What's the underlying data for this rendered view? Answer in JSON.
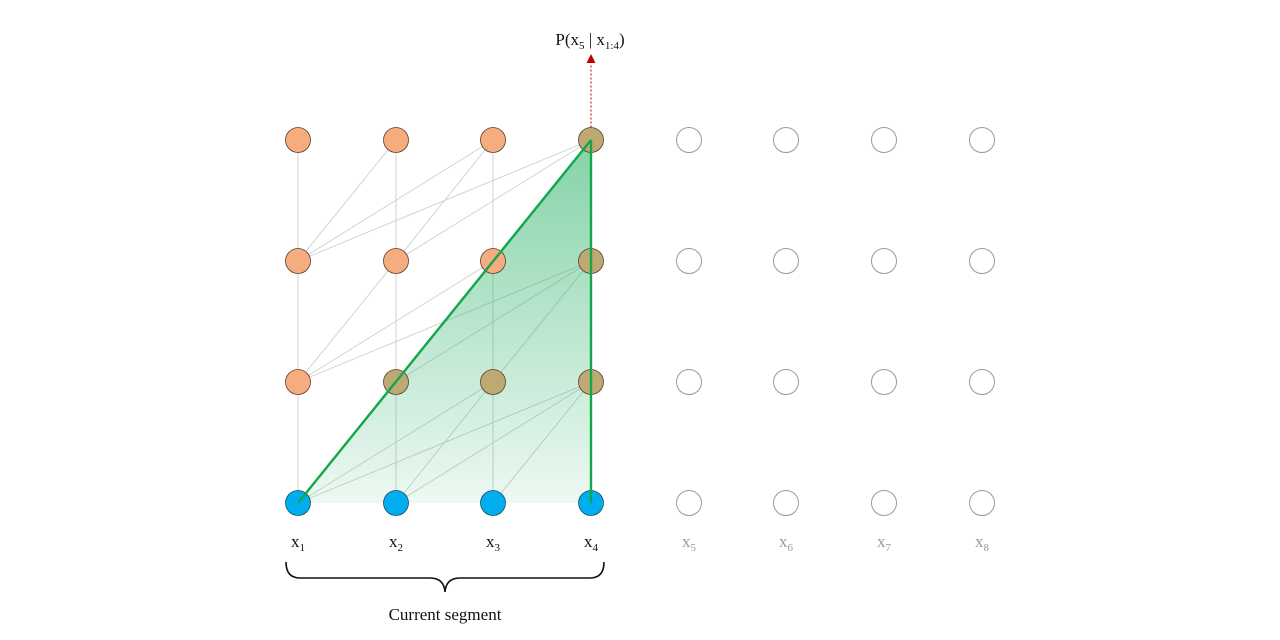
{
  "prediction_label": {
    "prefix": "P(x",
    "sub1": "5",
    "mid": " | x",
    "sub2": "1:4",
    "suffix": ")"
  },
  "segment_label": "Current segment",
  "tokens": [
    {
      "base": "x",
      "sub": "1",
      "active": true
    },
    {
      "base": "x",
      "sub": "2",
      "active": true
    },
    {
      "base": "x",
      "sub": "3",
      "active": true
    },
    {
      "base": "x",
      "sub": "4",
      "active": true
    },
    {
      "base": "x",
      "sub": "5",
      "active": false
    },
    {
      "base": "x",
      "sub": "6",
      "active": false
    },
    {
      "base": "x",
      "sub": "7",
      "active": false
    },
    {
      "base": "x",
      "sub": "8",
      "active": false
    }
  ],
  "hidden_layers": 3,
  "active_count": 4,
  "colors": {
    "input_node": "#00aeef",
    "hidden_node": "#f5ad7f",
    "covered_node": "#bcaa72",
    "inactive_node_stroke": "#9a9a9a",
    "connection": "#cfcfcf",
    "receptive_field": "#13a64a",
    "prediction_arrow": "#c00000"
  }
}
